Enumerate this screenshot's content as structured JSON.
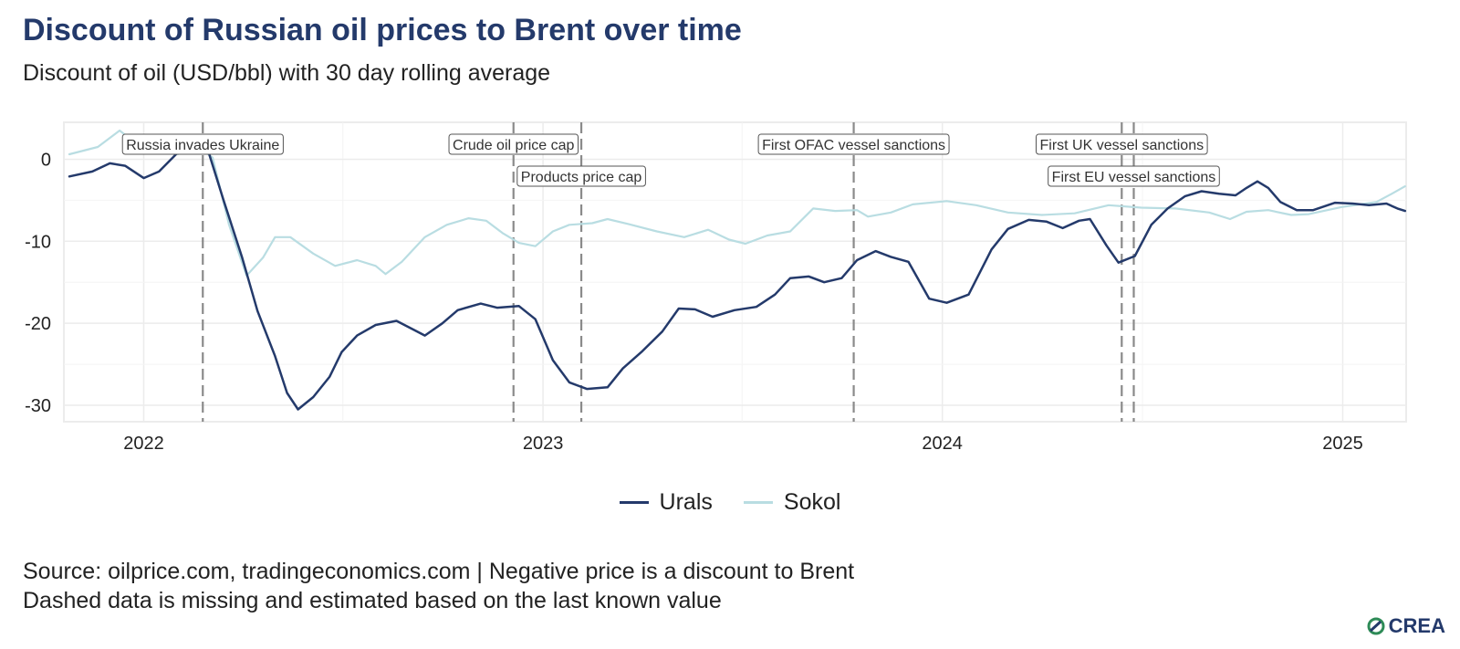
{
  "header": {
    "title": "Discount of Russian oil prices to Brent over time",
    "subtitle": "Discount of oil (USD/bbl) with 30 day rolling average"
  },
  "footer": {
    "source_line1": "Source: oilprice.com, tradingeconomics.com | Negative price is a discount to Brent",
    "source_line2": "Dashed data is missing and estimated based on the last known value",
    "logo_text": "CREA",
    "logo_icon": "crea-leaf-icon"
  },
  "chart_data": {
    "type": "line",
    "xlim": [
      "2021-10-20",
      "2025-02-28"
    ],
    "ylim": [
      -32,
      4.5
    ],
    "x_ticks": [
      "2022",
      "2023",
      "2024",
      "2025"
    ],
    "x_tick_dates": [
      "2022-01-01",
      "2023-01-01",
      "2024-01-01",
      "2025-01-01"
    ],
    "y_ticks": [
      0,
      -10,
      -20,
      -30
    ],
    "y_tick_labels": [
      "0",
      "-10",
      "-20",
      "-30"
    ],
    "grid": true,
    "legend_position": "bottom",
    "series": [
      {
        "name": "Urals",
        "color": "#243a6b",
        "points": [
          [
            "2021-10-25",
            -2.1
          ],
          [
            "2021-11-15",
            -1.5
          ],
          [
            "2021-12-01",
            -0.5
          ],
          [
            "2021-12-15",
            -0.8
          ],
          [
            "2022-01-01",
            -2.3
          ],
          [
            "2022-01-15",
            -1.5
          ],
          [
            "2022-02-01",
            0.8
          ],
          [
            "2022-02-20",
            2.0
          ],
          [
            "2022-03-01",
            1.0
          ],
          [
            "2022-03-15",
            -5.0
          ],
          [
            "2022-04-01",
            -12.0
          ],
          [
            "2022-04-15",
            -18.5
          ],
          [
            "2022-05-01",
            -24.0
          ],
          [
            "2022-05-12",
            -28.5
          ],
          [
            "2022-05-22",
            -30.5
          ],
          [
            "2022-06-05",
            -29.0
          ],
          [
            "2022-06-20",
            -26.5
          ],
          [
            "2022-07-01",
            -23.5
          ],
          [
            "2022-07-15",
            -21.5
          ],
          [
            "2022-08-01",
            -20.2
          ],
          [
            "2022-08-20",
            -19.7
          ],
          [
            "2022-09-05",
            -20.8
          ],
          [
            "2022-09-15",
            -21.5
          ],
          [
            "2022-10-01",
            -20.0
          ],
          [
            "2022-10-15",
            -18.4
          ],
          [
            "2022-11-05",
            -17.6
          ],
          [
            "2022-11-20",
            -18.1
          ],
          [
            "2022-12-10",
            -17.9
          ],
          [
            "2022-12-25",
            -19.5
          ],
          [
            "2023-01-10",
            -24.5
          ],
          [
            "2023-01-25",
            -27.2
          ],
          [
            "2023-02-10",
            -28.0
          ],
          [
            "2023-03-01",
            -27.8
          ],
          [
            "2023-03-15",
            -25.5
          ],
          [
            "2023-04-01",
            -23.5
          ],
          [
            "2023-04-20",
            -21.0
          ],
          [
            "2023-05-05",
            -18.2
          ],
          [
            "2023-05-20",
            -18.3
          ],
          [
            "2023-06-05",
            -19.2
          ],
          [
            "2023-06-25",
            -18.4
          ],
          [
            "2023-07-15",
            -18.0
          ],
          [
            "2023-08-01",
            -16.5
          ],
          [
            "2023-08-15",
            -14.5
          ],
          [
            "2023-09-01",
            -14.3
          ],
          [
            "2023-09-15",
            -15.0
          ],
          [
            "2023-10-01",
            -14.5
          ],
          [
            "2023-10-15",
            -12.3
          ],
          [
            "2023-11-01",
            -11.2
          ],
          [
            "2023-11-15",
            -11.9
          ],
          [
            "2023-12-01",
            -12.5
          ],
          [
            "2023-12-20",
            -17.0
          ],
          [
            "2024-01-05",
            -17.5
          ],
          [
            "2024-01-25",
            -16.5
          ],
          [
            "2024-02-15",
            -11.0
          ],
          [
            "2024-03-01",
            -8.5
          ],
          [
            "2024-03-20",
            -7.4
          ],
          [
            "2024-04-05",
            -7.6
          ],
          [
            "2024-04-20",
            -8.4
          ],
          [
            "2024-05-05",
            -7.5
          ],
          [
            "2024-05-15",
            -7.3
          ],
          [
            "2024-05-30",
            -10.5
          ],
          [
            "2024-06-10",
            -12.6
          ],
          [
            "2024-06-25",
            -11.8
          ],
          [
            "2024-07-10",
            -8.0
          ],
          [
            "2024-07-25",
            -6.0
          ],
          [
            "2024-08-10",
            -4.5
          ],
          [
            "2024-08-25",
            -3.9
          ],
          [
            "2024-09-10",
            -4.2
          ],
          [
            "2024-09-25",
            -4.4
          ],
          [
            "2024-10-05",
            -3.5
          ],
          [
            "2024-10-15",
            -2.7
          ],
          [
            "2024-10-25",
            -3.5
          ],
          [
            "2024-11-05",
            -5.2
          ],
          [
            "2024-11-20",
            -6.2
          ],
          [
            "2024-12-05",
            -6.2
          ],
          [
            "2024-12-25",
            -5.3
          ],
          [
            "2025-01-10",
            -5.4
          ],
          [
            "2025-01-25",
            -5.6
          ],
          [
            "2025-02-10",
            -5.4
          ],
          [
            "2025-02-20",
            -6.0
          ],
          [
            "2025-02-27",
            -6.3
          ]
        ]
      },
      {
        "name": "Sokol",
        "color": "#b9dde2",
        "points": [
          [
            "2021-10-25",
            0.6
          ],
          [
            "2021-11-20",
            1.5
          ],
          [
            "2021-12-10",
            3.5
          ],
          [
            "2022-01-01",
            1.2
          ],
          [
            "2022-02-01",
            0.6
          ],
          [
            "2022-02-20",
            1.5
          ],
          [
            "2022-03-05",
            0.2
          ],
          [
            "2022-03-20",
            -8.0
          ],
          [
            "2022-04-05",
            -14.2
          ],
          [
            "2022-04-20",
            -12.0
          ],
          [
            "2022-05-01",
            -9.5
          ],
          [
            "2022-05-15",
            -9.5
          ],
          [
            "2022-06-05",
            -11.5
          ],
          [
            "2022-06-25",
            -13.0
          ],
          [
            "2022-07-15",
            -12.3
          ],
          [
            "2022-08-01",
            -13.0
          ],
          [
            "2022-08-10",
            -14.0
          ],
          [
            "2022-08-25",
            -12.5
          ],
          [
            "2022-09-15",
            -9.5
          ],
          [
            "2022-10-05",
            -8.0
          ],
          [
            "2022-10-25",
            -7.2
          ],
          [
            "2022-11-10",
            -7.5
          ],
          [
            "2022-11-25",
            -9.0
          ],
          [
            "2022-12-10",
            -10.2
          ],
          [
            "2022-12-25",
            -10.6
          ],
          [
            "2023-01-10",
            -8.8
          ],
          [
            "2023-01-25",
            -8.0
          ],
          [
            "2023-02-15",
            -7.8
          ],
          [
            "2023-03-01",
            -7.3
          ],
          [
            "2023-03-20",
            -7.9
          ],
          [
            "2023-04-15",
            -8.8
          ],
          [
            "2023-05-10",
            -9.5
          ],
          [
            "2023-06-01",
            -8.6
          ],
          [
            "2023-06-20",
            -9.8
          ],
          [
            "2023-07-05",
            -10.3
          ],
          [
            "2023-07-25",
            -9.3
          ],
          [
            "2023-08-15",
            -8.8
          ],
          [
            "2023-09-05",
            -6.0
          ],
          [
            "2023-09-25",
            -6.3
          ],
          [
            "2023-10-15",
            -6.2
          ],
          [
            "2023-10-25",
            -7.0
          ],
          [
            "2023-11-15",
            -6.5
          ],
          [
            "2023-12-05",
            -5.5
          ],
          [
            "2024-01-05",
            -5.1
          ],
          [
            "2024-02-01",
            -5.6
          ],
          [
            "2024-03-01",
            -6.5
          ],
          [
            "2024-04-01",
            -6.8
          ],
          [
            "2024-05-01",
            -6.6
          ],
          [
            "2024-06-01",
            -5.6
          ],
          [
            "2024-07-01",
            -5.9
          ],
          [
            "2024-08-01",
            -6.0
          ],
          [
            "2024-09-01",
            -6.5
          ],
          [
            "2024-09-20",
            -7.3
          ],
          [
            "2024-10-05",
            -6.4
          ],
          [
            "2024-10-25",
            -6.2
          ],
          [
            "2024-11-15",
            -6.8
          ],
          [
            "2024-12-01",
            -6.7
          ],
          [
            "2025-01-01",
            -5.8
          ],
          [
            "2025-02-01",
            -5.2
          ],
          [
            "2025-02-15",
            -4.2
          ],
          [
            "2025-02-27",
            -3.3
          ]
        ]
      }
    ],
    "annotations": [
      {
        "label": "Russia invades Ukraine",
        "date": "2022-02-24",
        "row": 1
      },
      {
        "label": "Crude oil price cap",
        "date": "2022-12-05",
        "row": 1
      },
      {
        "label": "Products price cap",
        "date": "2023-02-05",
        "row": 2
      },
      {
        "label": "First OFAC vessel sanctions",
        "date": "2023-10-12",
        "row": 1
      },
      {
        "label": "First UK vessel sanctions",
        "date": "2024-06-13",
        "row": 1
      },
      {
        "label": "First EU vessel sanctions",
        "date": "2024-06-24",
        "row": 2
      }
    ]
  }
}
